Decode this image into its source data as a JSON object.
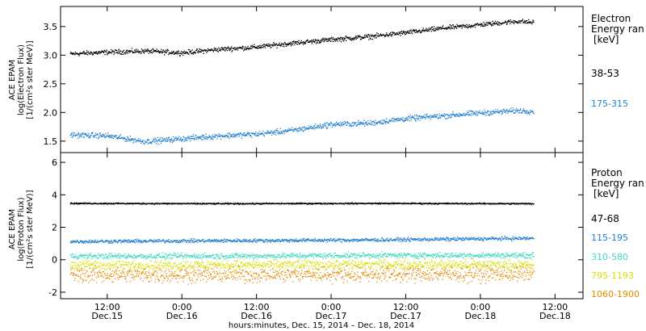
{
  "x_axis": {
    "caption": "hours:minutes, Dec. 15, 2014 – Dec. 18, 2014",
    "ticks": [
      {
        "time": "12:00",
        "date": "Dec.15",
        "hour": 12
      },
      {
        "time": "0:00",
        "date": "Dec.16",
        "hour": 24
      },
      {
        "time": "12:00",
        "date": "Dec.16",
        "hour": 36
      },
      {
        "time": "0:00",
        "date": "Dec.17",
        "hour": 48
      },
      {
        "time": "12:00",
        "date": "Dec.17",
        "hour": 60
      },
      {
        "time": "0:00",
        "date": "Dec.18",
        "hour": 72
      },
      {
        "time": "12:00",
        "date": "Dec.18",
        "hour": 84
      }
    ]
  },
  "chart_data": [
    {
      "type": "scatter",
      "panel": "electron",
      "ylabel": [
        "ACE EPAM",
        "log(Electron Flux)",
        "[1/(cm²s ster MeV)]"
      ],
      "xlim": [
        4.5,
        88.5
      ],
      "ylim": [
        1.3,
        3.85
      ],
      "y_ticks": [
        1.5,
        2.0,
        2.5,
        3.0,
        3.5
      ],
      "y_tick_labels": [
        "1.5",
        "2.0",
        "2.5",
        "3.0",
        "3.5"
      ],
      "legend_title": [
        "Electron",
        "Energy ran",
        "[keV]"
      ],
      "x_unit": "hours since Dec. 15, 2014 00:00",
      "series": [
        {
          "name": "38-53",
          "color": "#000000",
          "noise": 0.03,
          "x": [
            6,
            12,
            18,
            24,
            30,
            36,
            42,
            48,
            54,
            60,
            66,
            72,
            78,
            80.5
          ],
          "y": [
            3.03,
            3.06,
            3.08,
            3.05,
            3.11,
            3.15,
            3.22,
            3.28,
            3.33,
            3.4,
            3.48,
            3.54,
            3.6,
            3.58
          ]
        },
        {
          "name": "175-315",
          "color": "#1e7fd0",
          "noise": 0.035,
          "x": [
            6,
            12,
            18,
            24,
            30,
            36,
            42,
            48,
            54,
            60,
            66,
            72,
            78,
            80.5
          ],
          "y": [
            1.62,
            1.6,
            1.5,
            1.55,
            1.6,
            1.63,
            1.7,
            1.8,
            1.82,
            1.9,
            1.95,
            2.0,
            2.04,
            2.03
          ]
        }
      ]
    },
    {
      "type": "scatter",
      "panel": "proton",
      "ylabel": [
        "ACE EPAM",
        "log(Proton Flux)",
        "[1/(cm²s ster MeV)]"
      ],
      "xlim": [
        4.5,
        88.5
      ],
      "ylim": [
        -2.4,
        6.6
      ],
      "y_ticks": [
        -2,
        0,
        2,
        4,
        6
      ],
      "y_tick_labels": [
        "-2",
        "0",
        "2",
        "4",
        "6"
      ],
      "legend_title": [
        "Proton",
        "Energy ran",
        "[keV]"
      ],
      "x_unit": "hours since Dec. 15, 2014 00:00",
      "series": [
        {
          "name": "47-68",
          "color": "#000000",
          "noise": 0.03,
          "x": [
            6,
            30,
            55,
            80.5
          ],
          "y": [
            3.5,
            3.48,
            3.5,
            3.48
          ]
        },
        {
          "name": "115-195",
          "color": "#1e7fd0",
          "noise": 0.08,
          "x": [
            6,
            30,
            55,
            80.5
          ],
          "y": [
            1.15,
            1.2,
            1.25,
            1.35
          ]
        },
        {
          "name": "310-580",
          "color": "#40d8c8",
          "noise": 0.12,
          "x": [
            6,
            30,
            55,
            80.5
          ],
          "y": [
            0.25,
            0.25,
            0.3,
            0.3
          ]
        },
        {
          "name": "795-1193",
          "color": "#d8e000",
          "noise": 0.22,
          "x": [
            6,
            30,
            55,
            80.5
          ],
          "y": [
            -0.3,
            -0.3,
            -0.25,
            -0.3
          ]
        },
        {
          "name": "1060-1900",
          "color": "#e88a00",
          "noise": 0.35,
          "x": [
            6,
            30,
            55,
            80.5
          ],
          "y": [
            -0.9,
            -0.9,
            -0.85,
            -0.85
          ]
        }
      ]
    }
  ]
}
